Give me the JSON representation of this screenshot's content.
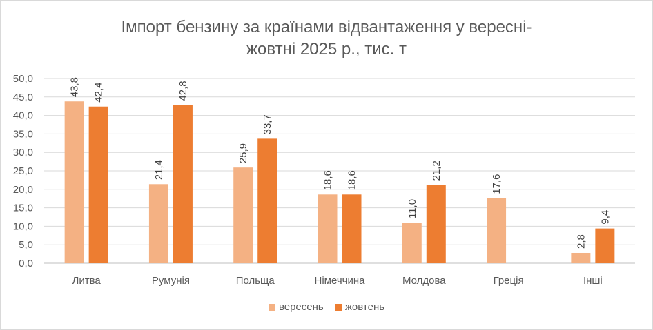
{
  "chart_data": {
    "type": "bar",
    "title_line1": "Імпорт бензину за країнами відвантаження у вересні-",
    "title_line2": "жовтні 2025 р., тис. т",
    "categories": [
      "Литва",
      "Румунія",
      "Польща",
      "Німеччина",
      "Молдова",
      "Греція",
      "Інші"
    ],
    "series": [
      {
        "name": "вересень",
        "color": "#f4b183",
        "values": [
          43.8,
          21.4,
          25.9,
          18.6,
          11.0,
          17.6,
          2.8
        ]
      },
      {
        "name": "жовтень",
        "color": "#ed7d31",
        "values": [
          42.4,
          42.8,
          33.7,
          18.6,
          21.2,
          null,
          9.4
        ]
      }
    ],
    "ylim": [
      0,
      50
    ],
    "yticks": [
      "0,0",
      "5,0",
      "10,0",
      "15,0",
      "20,0",
      "25,0",
      "30,0",
      "35,0",
      "40,0",
      "45,0",
      "50,0"
    ],
    "grid": true,
    "legend_position": "bottom",
    "data_labels_rotated": true
  }
}
